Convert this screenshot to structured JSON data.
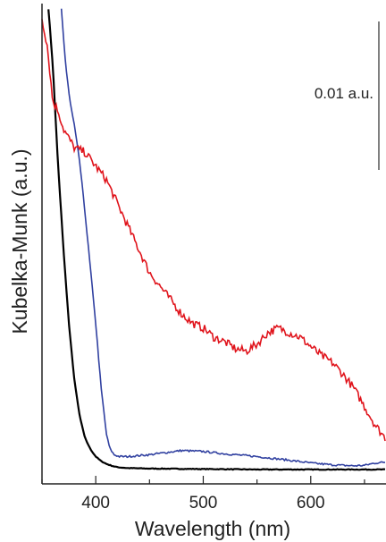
{
  "chart_data": {
    "type": "line",
    "title": "",
    "xlabel": "Wavelength (nm)",
    "ylabel": "Kubelka-Munk (a.u.)",
    "xlim": [
      350,
      670
    ],
    "ylim": [
      0,
      1
    ],
    "xticks": [
      400,
      500,
      600
    ],
    "xtick_labels": [
      "400",
      "500",
      "600"
    ],
    "yticks_shown": false,
    "grid": false,
    "legend": "none",
    "scale_bar": {
      "label": "0.01 a.u."
    },
    "series": [
      {
        "color": "#000000",
        "x": [
          356,
          360,
          365,
          370,
          375,
          380,
          385,
          390,
          395,
          400,
          405,
          410,
          415,
          420,
          430,
          450,
          500,
          550,
          600,
          650,
          670
        ],
        "y": [
          1.0,
          0.88,
          0.66,
          0.48,
          0.32,
          0.2,
          0.12,
          0.072,
          0.048,
          0.032,
          0.022,
          0.016,
          0.012,
          0.009,
          0.007,
          0.006,
          0.005,
          0.004,
          0.004,
          0.004,
          0.004
        ]
      },
      {
        "color": "#3040a0",
        "x": [
          368,
          372,
          376,
          380,
          385,
          390,
          395,
          400,
          405,
          410,
          413,
          417,
          422,
          430,
          450,
          480,
          500,
          520,
          550,
          580,
          600,
          620,
          640,
          650,
          660,
          670
        ],
        "y": [
          1.0,
          0.88,
          0.8,
          0.75,
          0.67,
          0.56,
          0.44,
          0.32,
          0.18,
          0.08,
          0.05,
          0.036,
          0.032,
          0.032,
          0.036,
          0.045,
          0.043,
          0.038,
          0.032,
          0.024,
          0.018,
          0.014,
          0.012,
          0.013,
          0.018,
          0.02
        ]
      },
      {
        "color": "#e0141c",
        "x": [
          350,
          355,
          360,
          365,
          370,
          380,
          390,
          400,
          410,
          420,
          430,
          440,
          450,
          460,
          470,
          480,
          490,
          500,
          510,
          520,
          530,
          540,
          550,
          560,
          570,
          580,
          590,
          600,
          610,
          620,
          630,
          640,
          650,
          660,
          670
        ],
        "y": [
          0.98,
          0.92,
          0.8,
          0.78,
          0.74,
          0.7,
          0.69,
          0.66,
          0.63,
          0.58,
          0.53,
          0.48,
          0.43,
          0.4,
          0.37,
          0.34,
          0.32,
          0.31,
          0.29,
          0.28,
          0.265,
          0.26,
          0.275,
          0.3,
          0.31,
          0.3,
          0.29,
          0.27,
          0.25,
          0.235,
          0.21,
          0.18,
          0.14,
          0.1,
          0.07
        ]
      }
    ]
  }
}
